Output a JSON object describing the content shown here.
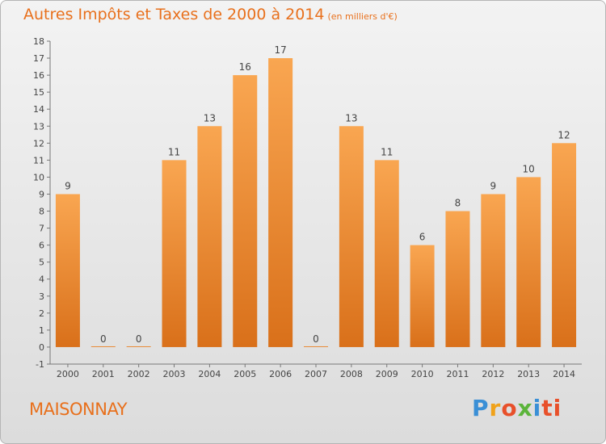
{
  "title": {
    "main": "Autres Impôts et Taxes de 2000 à 2014",
    "unit": "(en milliers d'€)"
  },
  "commune": "MAISONNAY",
  "logo": {
    "text": "Proxiti",
    "letters": [
      "P",
      "r",
      "o",
      "x",
      "i",
      "ti"
    ]
  },
  "colors": {
    "title": "#e8701c",
    "bar_top": "#f9a651",
    "bar_bottom": "#d9701a",
    "axis": "#555555"
  },
  "chart_data": {
    "type": "bar",
    "title": "Autres Impôts et Taxes de 2000 à 2014",
    "subtitle": "(en milliers d'€)",
    "categories": [
      "2000",
      "2001",
      "2002",
      "2003",
      "2004",
      "2005",
      "2006",
      "2007",
      "2008",
      "2009",
      "2010",
      "2011",
      "2012",
      "2013",
      "2014"
    ],
    "values": [
      9,
      0,
      0,
      11,
      13,
      16,
      17,
      0,
      13,
      11,
      6,
      8,
      9,
      10,
      12
    ],
    "data_labels": [
      "9",
      "0",
      "0",
      "11",
      "13",
      "16",
      "17",
      "0",
      "13",
      "11",
      "6",
      "8",
      "9",
      "10",
      "12"
    ],
    "yticks": [
      "-1",
      "0",
      "1",
      "2",
      "3",
      "4",
      "5",
      "6",
      "7",
      "8",
      "9",
      "10",
      "11",
      "12",
      "13",
      "14",
      "15",
      "16",
      "17",
      "18"
    ],
    "ylim": [
      -1,
      18
    ],
    "xlabel": "",
    "ylabel": "",
    "grid": false,
    "legend": "none"
  }
}
